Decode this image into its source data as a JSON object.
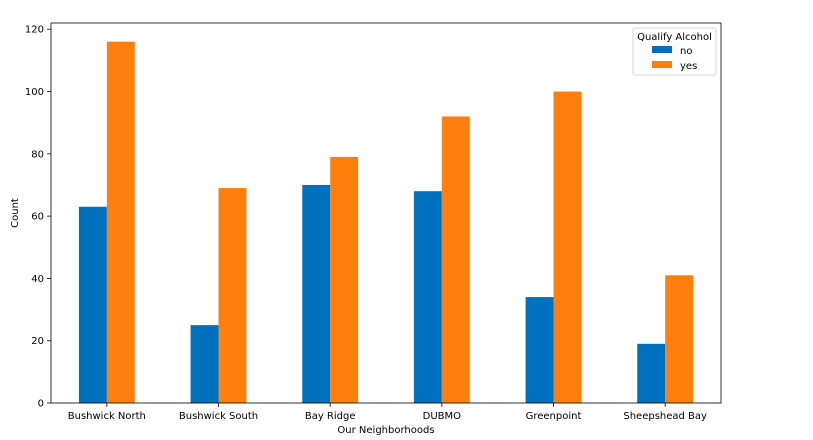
{
  "chart_data": {
    "type": "bar",
    "title": "",
    "xlabel": "Our Neighborhoods",
    "ylabel": "Count",
    "categories": [
      "Bushwick North",
      "Bushwick South",
      "Bay Ridge",
      "DUBMO",
      "Greenpoint",
      "Sheepshead Bay"
    ],
    "series": [
      {
        "name": "no",
        "values": [
          63,
          25,
          70,
          68,
          34,
          19
        ],
        "color": "#0072bd"
      },
      {
        "name": "yes",
        "values": [
          116,
          69,
          79,
          92,
          100,
          41
        ],
        "color": "#ff7f0e"
      }
    ],
    "ylim": [
      0,
      122
    ],
    "yticks": [
      0,
      20,
      40,
      60,
      80,
      100,
      120
    ],
    "grid": false,
    "legend": {
      "title": "Qualify Alcohol",
      "placement": "top-right"
    }
  }
}
